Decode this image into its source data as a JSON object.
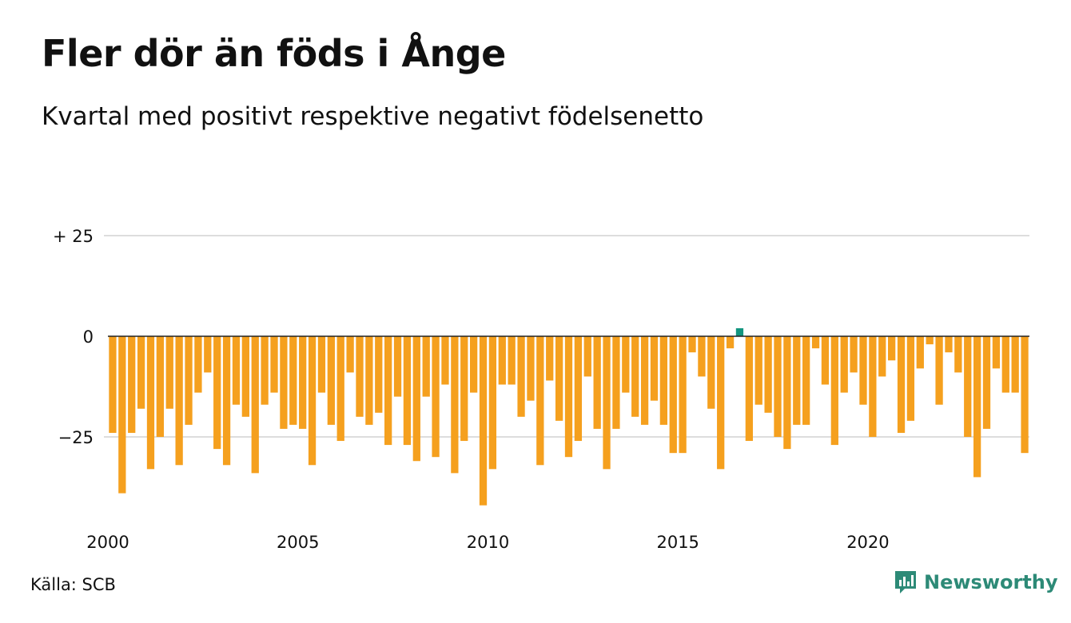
{
  "title": "Fler dör än föds i Ånge",
  "subtitle": "Kvartal med positivt respektive negativt födelsenetto",
  "source": "Källa: SCB",
  "brand": "Newsworthy",
  "colors": {
    "negative": "#f5a01e",
    "positive": "#13957f",
    "grid": "#dddddd",
    "zero_line": "#222222",
    "brand": "#2d8a77"
  },
  "icons": {
    "brand_logo": "bar-chart-speech-bubble-icon"
  },
  "chart_data": {
    "type": "bar",
    "x_start": "2000 Q1",
    "x_ticks": [
      "2000",
      "2005",
      "2010",
      "2015",
      "2020"
    ],
    "y_ticks": [
      {
        "value": 25,
        "label": "+ 25"
      },
      {
        "value": 0,
        "label": "0"
      },
      {
        "value": -25,
        "label": "−25"
      }
    ],
    "ylim": [
      -45,
      30
    ],
    "grid": true,
    "values": [
      -24,
      -39,
      -24,
      -18,
      -33,
      -25,
      -18,
      -32,
      -22,
      -14,
      -9,
      -28,
      -32,
      -17,
      -20,
      -34,
      -17,
      -14,
      -23,
      -22,
      -23,
      -32,
      -14,
      -22,
      -26,
      -9,
      -20,
      -22,
      -19,
      -27,
      -15,
      -27,
      -31,
      -15,
      -30,
      -12,
      -34,
      -26,
      -14,
      -42,
      -33,
      -12,
      -12,
      -20,
      -16,
      -32,
      -11,
      -21,
      -30,
      -26,
      -10,
      -23,
      -33,
      -23,
      -14,
      -20,
      -22,
      -16,
      -22,
      -29,
      -29,
      -4,
      -10,
      -18,
      -33,
      -3,
      2,
      -26,
      -17,
      -19,
      -25,
      -28,
      -22,
      -22,
      -3,
      -12,
      -27,
      -14,
      -9,
      -17,
      -25,
      -10,
      -6,
      -24,
      -21,
      -8,
      -2,
      -17,
      -4,
      -9,
      -25,
      -35,
      -23,
      -8,
      -14,
      -14,
      -29
    ]
  }
}
